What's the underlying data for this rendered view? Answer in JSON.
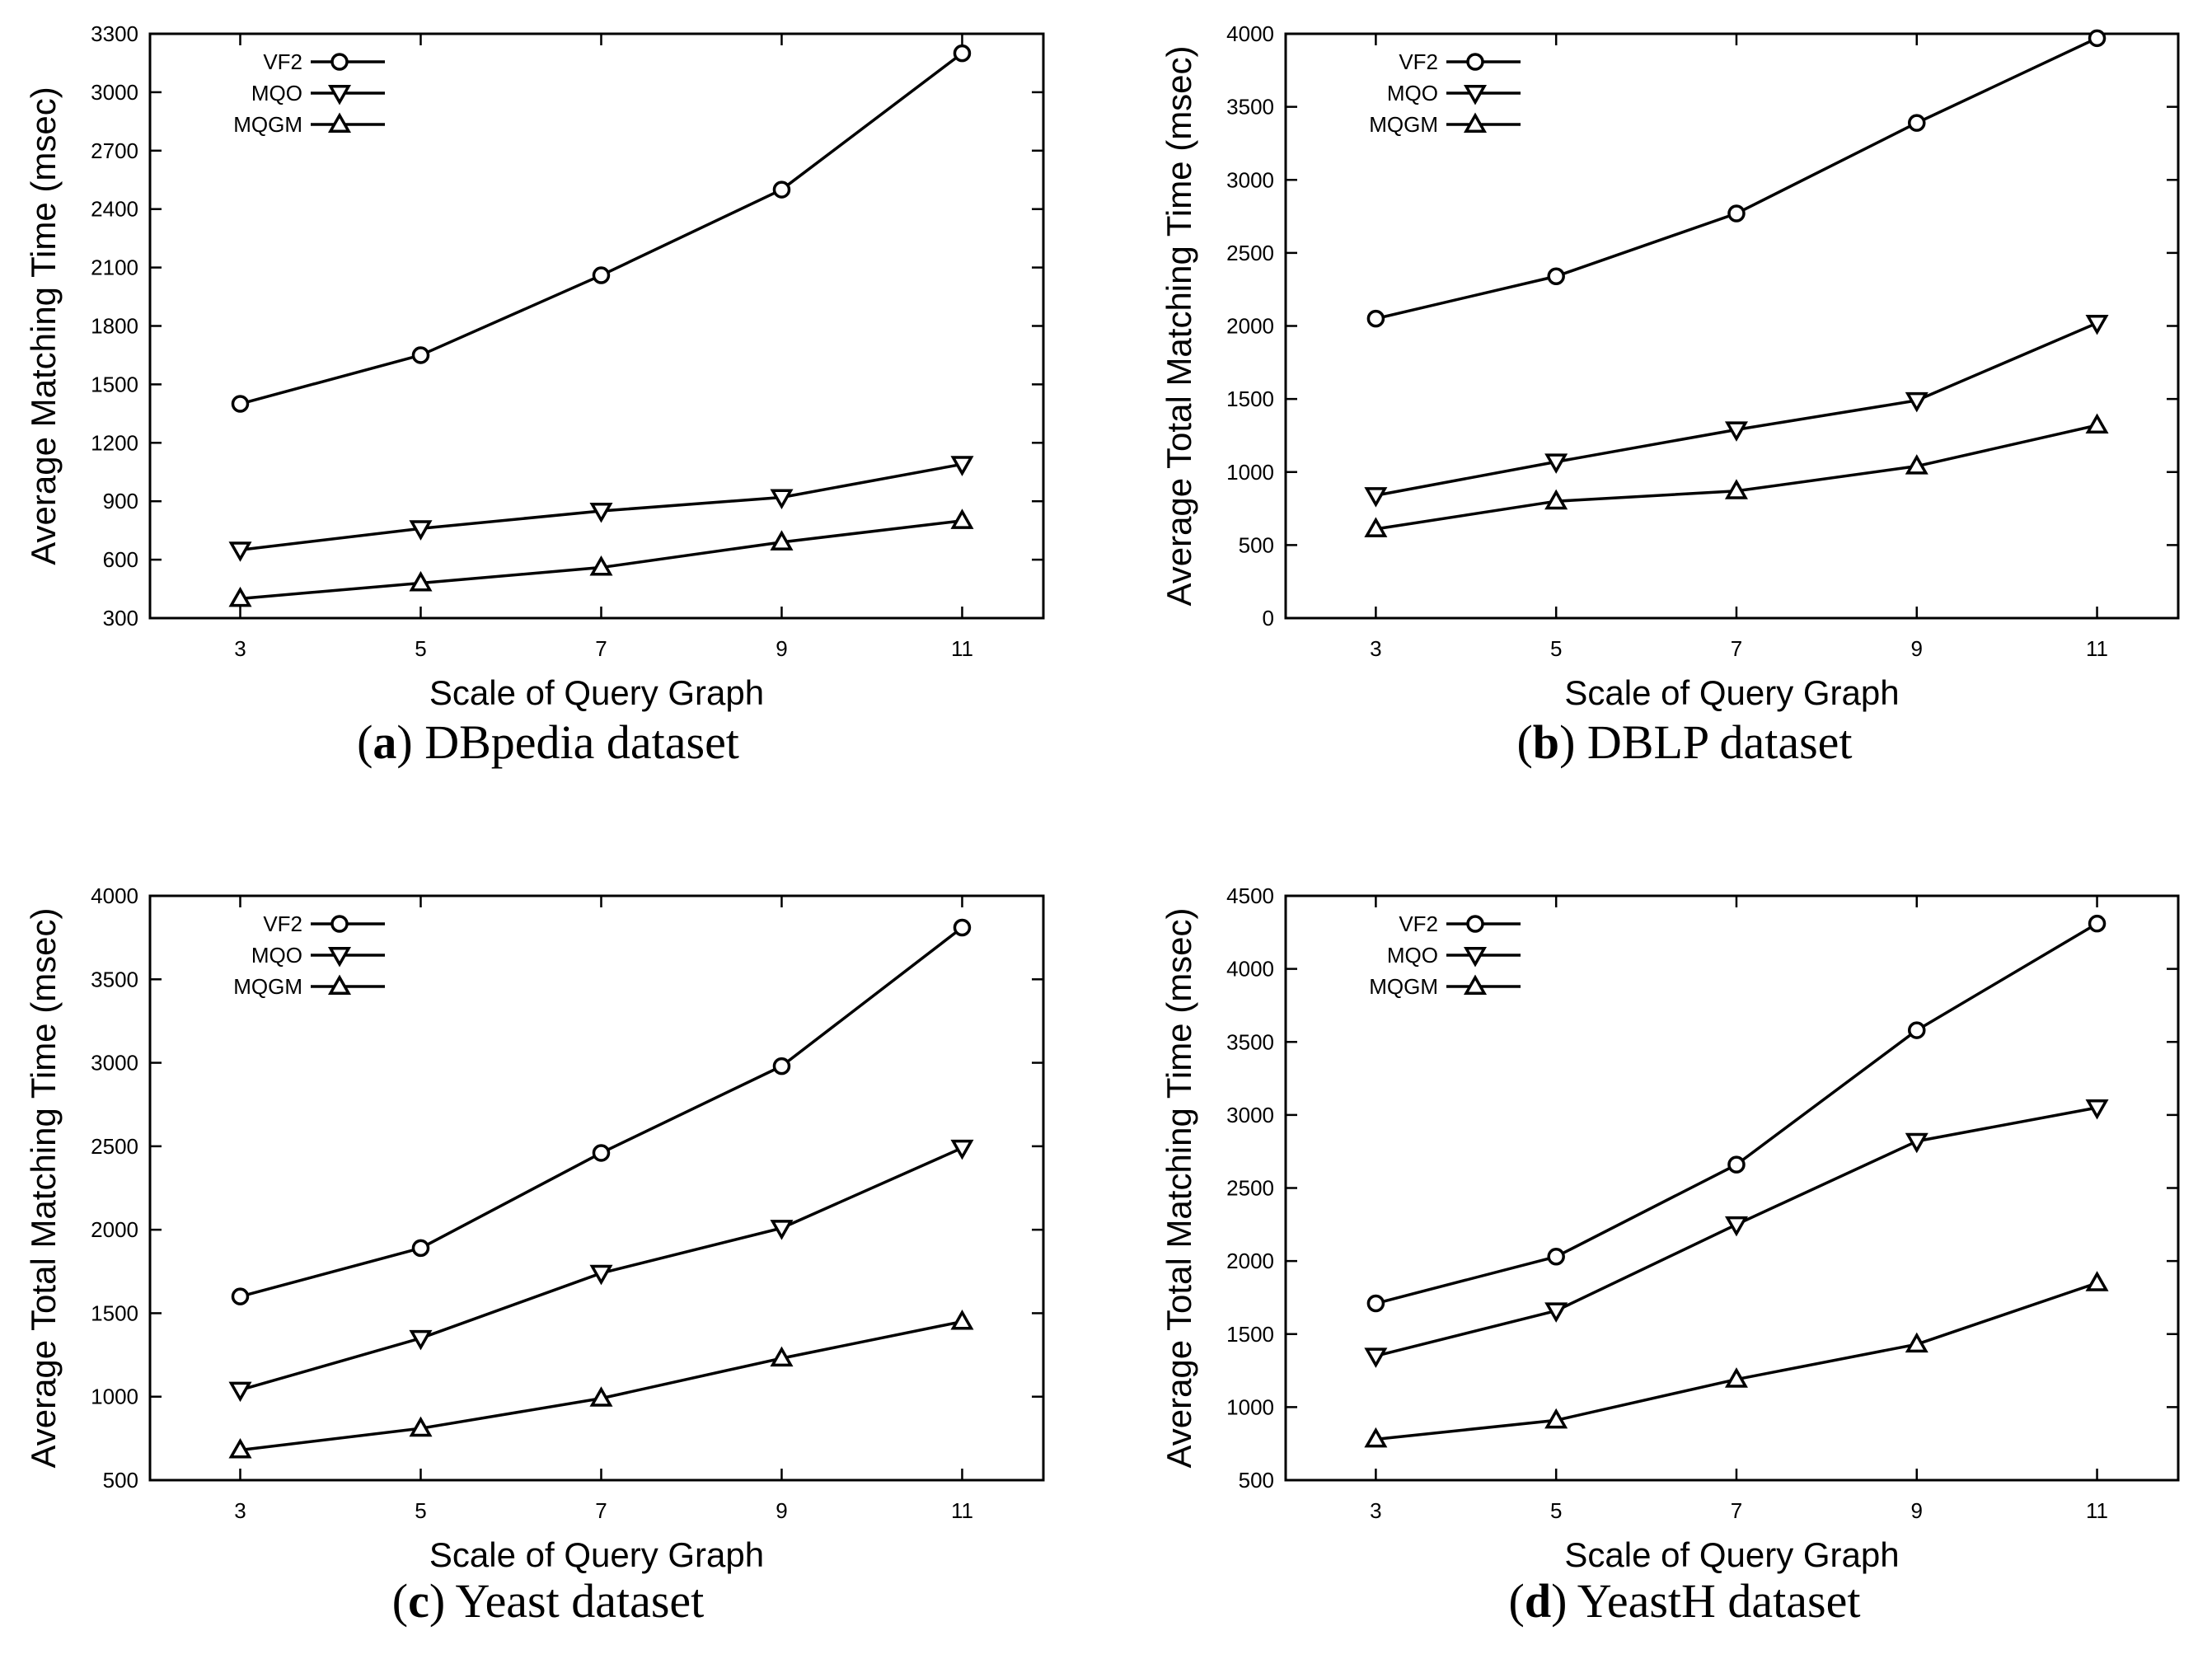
{
  "figure": {
    "charts": [
      "a",
      "b",
      "c",
      "d"
    ]
  },
  "chart_data": [
    {
      "id": "a",
      "type": "line",
      "caption_letter": "a",
      "caption_text": "DBpedia dataset",
      "x": [
        3,
        5,
        7,
        9,
        11
      ],
      "xlabel": "Scale of Query Graph",
      "ylabel": "Average Matching Time (msec)",
      "ylim": [
        300,
        3300
      ],
      "yticks": [
        300,
        600,
        900,
        1200,
        1500,
        1800,
        2100,
        2400,
        2700,
        3000,
        3300
      ],
      "legend_position": "top-left",
      "series": [
        {
          "name": "VF2",
          "marker": "circle",
          "values": [
            1400,
            1650,
            2060,
            2500,
            3200
          ]
        },
        {
          "name": "MQO",
          "marker": "triangle-down",
          "values": [
            650,
            760,
            850,
            920,
            1090
          ]
        },
        {
          "name": "MQGM",
          "marker": "triangle-up",
          "values": [
            400,
            480,
            560,
            690,
            800
          ]
        }
      ]
    },
    {
      "id": "b",
      "type": "line",
      "caption_letter": "b",
      "caption_text": "DBLP dataset",
      "x": [
        3,
        5,
        7,
        9,
        11
      ],
      "xlabel": "Scale of Query Graph",
      "ylabel": "Average Total Matching Time (msec)",
      "ylim": [
        0,
        4000
      ],
      "yticks": [
        0,
        500,
        1000,
        1500,
        2000,
        2500,
        3000,
        3500,
        4000
      ],
      "legend_position": "top-left",
      "series": [
        {
          "name": "VF2",
          "marker": "circle",
          "values": [
            2050,
            2340,
            2770,
            3390,
            3970
          ]
        },
        {
          "name": "MQO",
          "marker": "triangle-down",
          "values": [
            840,
            1070,
            1290,
            1490,
            2020
          ]
        },
        {
          "name": "MQGM",
          "marker": "triangle-up",
          "values": [
            610,
            800,
            870,
            1040,
            1320
          ]
        }
      ]
    },
    {
      "id": "c",
      "type": "line",
      "caption_letter": "c",
      "caption_text": "Yeast dataset",
      "x": [
        3,
        5,
        7,
        9,
        11
      ],
      "xlabel": "Scale of Query Graph",
      "ylabel": "Average Total Matching Time (msec)",
      "ylim": [
        500,
        4000
      ],
      "yticks": [
        500,
        1000,
        1500,
        2000,
        2500,
        3000,
        3500,
        4000
      ],
      "legend_position": "top-left",
      "series": [
        {
          "name": "VF2",
          "marker": "circle",
          "values": [
            1600,
            1890,
            2460,
            2980,
            3810
          ]
        },
        {
          "name": "MQO",
          "marker": "triangle-down",
          "values": [
            1040,
            1350,
            1740,
            2010,
            2490
          ]
        },
        {
          "name": "MQGM",
          "marker": "triangle-up",
          "values": [
            680,
            810,
            990,
            1230,
            1450
          ]
        }
      ]
    },
    {
      "id": "d",
      "type": "line",
      "caption_letter": "d",
      "caption_text": "YeastH dataset",
      "x": [
        3,
        5,
        7,
        9,
        11
      ],
      "xlabel": "Scale of Query Graph",
      "ylabel": "Average Total Matching Time (msec)",
      "ylim": [
        500,
        4500
      ],
      "yticks": [
        500,
        1000,
        1500,
        2000,
        2500,
        3000,
        3500,
        4000,
        4500
      ],
      "legend_position": "top-left",
      "series": [
        {
          "name": "VF2",
          "marker": "circle",
          "values": [
            1710,
            2030,
            2660,
            3580,
            4310
          ]
        },
        {
          "name": "MQO",
          "marker": "triangle-down",
          "values": [
            1350,
            1660,
            2250,
            2820,
            3050
          ]
        },
        {
          "name": "MQGM",
          "marker": "triangle-up",
          "values": [
            780,
            910,
            1190,
            1430,
            1850
          ]
        }
      ]
    }
  ]
}
